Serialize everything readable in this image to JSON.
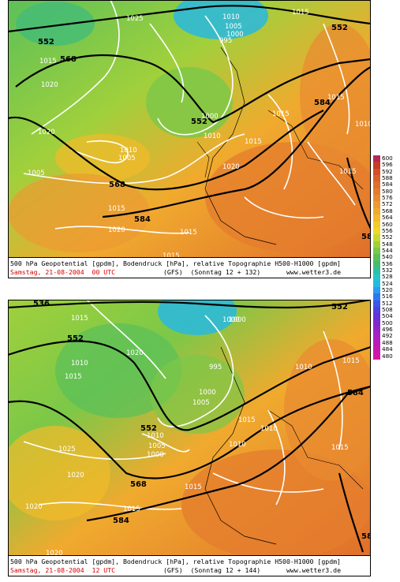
{
  "panels": [
    {
      "caption_line1": "500 hPa Geopotential [gpdm], Bodendruck [hPa], relative Topographie H500-H1000 [gpdm]",
      "caption_date": "Samstag, 21-08-2004  00 UTC",
      "caption_run": "(GFS)  (Sonntag 12 + 132)",
      "caption_site": "www.wetter3.de",
      "isobar_labels": [
        "1025",
        "1010",
        "1005",
        "1000",
        "995",
        "552",
        "552",
        "1005",
        "1015",
        "1020",
        "1020",
        "1010",
        "1000",
        "1005",
        "1010",
        "1015",
        "1015",
        "1015",
        "1010",
        "1005",
        "552",
        "568",
        "588",
        "1015",
        "584",
        "1020",
        "1015",
        "1015",
        "1020",
        "1015",
        "1010",
        "1015",
        "584",
        "1015",
        "58",
        "1000",
        "1015"
      ],
      "geo_labels": [
        "552",
        "568",
        "552",
        "584",
        "568",
        "552",
        "584",
        "58"
      ]
    },
    {
      "caption_line1": "500 hPa Geopotential [gpdm], Bodendruck [hPa], relative Topographie H500-H1000 [gpdm]",
      "caption_date": "Samstag, 21-08-2004  12 UTC",
      "caption_run": "(GFS)  (Sonntag 12 + 144)",
      "caption_site": "www.wetter3.de",
      "isobar_labels": [
        "1015",
        "1010",
        "1015",
        "1020",
        "995",
        "1000",
        "1000",
        "1005",
        "1010",
        "1015",
        "1010",
        "1025",
        "1020",
        "1020",
        "1015",
        "1000",
        "1005",
        "1010",
        "1015",
        "1015",
        "1010",
        "1015",
        "1020",
        "1000",
        "1015",
        "1020",
        "1015"
      ],
      "geo_labels": [
        "536",
        "552",
        "552",
        "568",
        "584",
        "584",
        "58",
        "552"
      ]
    }
  ],
  "legend": {
    "values": [
      "600",
      "596",
      "592",
      "588",
      "584",
      "580",
      "576",
      "572",
      "568",
      "564",
      "560",
      "556",
      "552",
      "548",
      "544",
      "540",
      "536",
      "532",
      "528",
      "524",
      "520",
      "516",
      "512",
      "508",
      "504",
      "500",
      "496",
      "492",
      "488",
      "484",
      "480"
    ],
    "colors": [
      "#b4285a",
      "#c83c28",
      "#d25028",
      "#d9602a",
      "#e06e2c",
      "#e47c2e",
      "#e88a30",
      "#ec9a32",
      "#f0aa2e",
      "#f4ba2a",
      "#f6ca28",
      "#f0d828",
      "#c8d830",
      "#a0d03c",
      "#7cc848",
      "#5cc058",
      "#44bc78",
      "#30c0a0",
      "#28c4c8",
      "#28b8e0",
      "#2c9cf0",
      "#3078f0",
      "#3c58e8",
      "#5040e0",
      "#6830d8",
      "#8028d0",
      "#9424c8",
      "#a820c0",
      "#b81cb8",
      "#c818b0",
      "#d814a8"
    ]
  }
}
